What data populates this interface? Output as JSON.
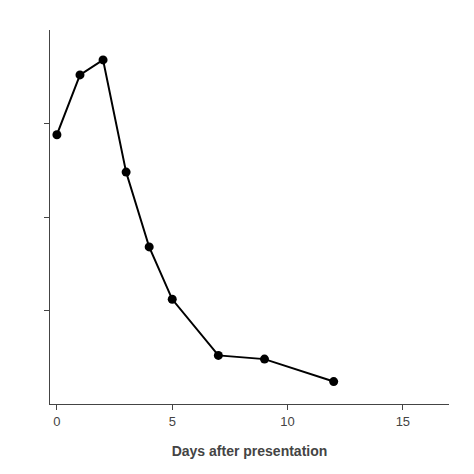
{
  "chart_data": {
    "type": "line",
    "x": [
      0,
      1,
      2,
      3,
      4,
      5,
      7,
      9,
      12
    ],
    "values": [
      0.72,
      0.88,
      0.92,
      0.62,
      0.42,
      0.28,
      0.13,
      0.12,
      0.06
    ],
    "xlabel": "Days after presentation",
    "xlim": [
      -0.3,
      17
    ],
    "ylim": [
      0,
      1.0
    ],
    "xticks": [
      0,
      5,
      10,
      15
    ],
    "yticks": [
      0.25,
      0.5,
      0.75
    ],
    "tick_labels": "x",
    "grid": false,
    "color": "#000000",
    "marker": "circle"
  }
}
